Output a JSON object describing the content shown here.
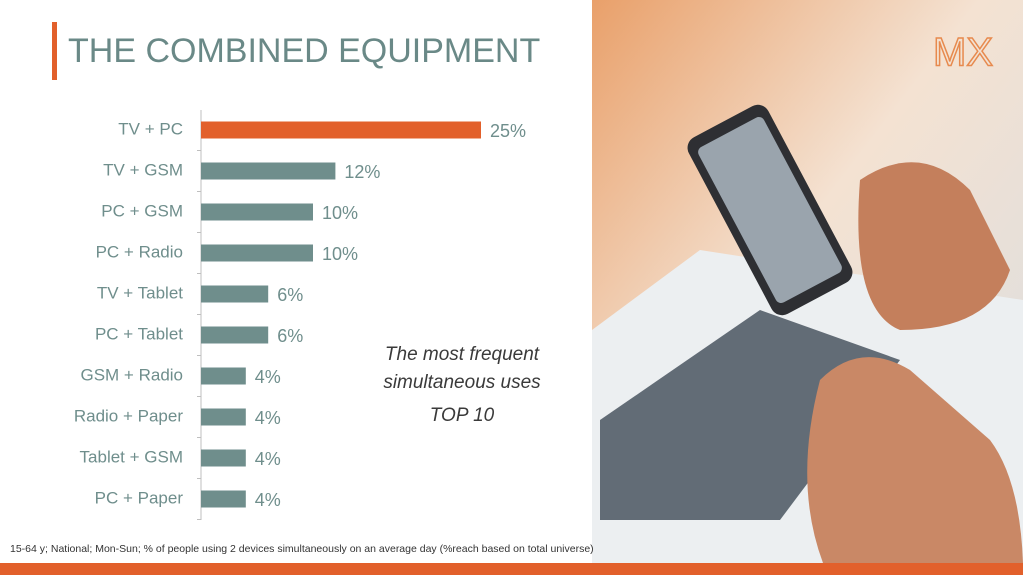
{
  "chart_data": {
    "type": "bar",
    "orientation": "horizontal",
    "title": "THE COMBINED EQUIPMENT",
    "categories": [
      "TV + PC",
      "TV + GSM",
      "PC + GSM",
      "PC + Radio",
      "TV + Tablet",
      "PC + Tablet",
      "GSM + Radio",
      "Radio + Paper",
      "Tablet + GSM",
      "PC + Paper"
    ],
    "values": [
      25,
      12,
      10,
      10,
      6,
      6,
      4,
      4,
      4,
      4
    ],
    "value_labels": [
      "25%",
      "12%",
      "10%",
      "10%",
      "6%",
      "6%",
      "4%",
      "4%",
      "4%",
      "4%"
    ],
    "colors": [
      "#e2602b",
      "#6f8e8c",
      "#6f8e8c",
      "#6f8e8c",
      "#6f8e8c",
      "#6f8e8c",
      "#6f8e8c",
      "#6f8e8c",
      "#6f8e8c",
      "#6f8e8c"
    ],
    "annotation": [
      "The most frequent",
      "simultaneous uses",
      "TOP 10"
    ],
    "footnote": "15-64 y; National; Mon-Sun; % of people using 2 devices simultaneously on an average day (%reach based on total universe)",
    "logo": "MX"
  }
}
